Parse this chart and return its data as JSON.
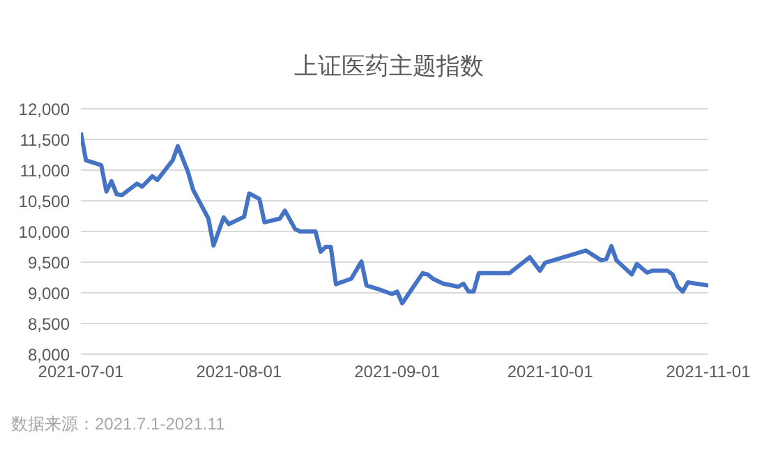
{
  "chart_data": {
    "type": "line",
    "title": "上证医药主题指数",
    "annotations": [
      "数据来源：2021.7.1-2021.11"
    ],
    "x": [
      "2021-07-01",
      "2021-07-02",
      "2021-07-05",
      "2021-07-06",
      "2021-07-07",
      "2021-07-08",
      "2021-07-09",
      "2021-07-12",
      "2021-07-13",
      "2021-07-15",
      "2021-07-16",
      "2021-07-19",
      "2021-07-20",
      "2021-07-22",
      "2021-07-23",
      "2021-07-26",
      "2021-07-27",
      "2021-07-29",
      "2021-07-30",
      "2021-08-02",
      "2021-08-03",
      "2021-08-05",
      "2021-08-06",
      "2021-08-09",
      "2021-08-10",
      "2021-08-12",
      "2021-08-13",
      "2021-08-16",
      "2021-08-17",
      "2021-08-18",
      "2021-08-19",
      "2021-08-20",
      "2021-08-23",
      "2021-08-25",
      "2021-08-26",
      "2021-08-29",
      "2021-08-31",
      "2021-09-01",
      "2021-09-02",
      "2021-09-06",
      "2021-09-07",
      "2021-09-08",
      "2021-09-10",
      "2021-09-13",
      "2021-09-14",
      "2021-09-15",
      "2021-09-16",
      "2021-09-17",
      "2021-09-23",
      "2021-09-27",
      "2021-09-29",
      "2021-09-30",
      "2021-10-08",
      "2021-10-11",
      "2021-10-12",
      "2021-10-13",
      "2021-10-14",
      "2021-10-17",
      "2021-10-18",
      "2021-10-20",
      "2021-10-21",
      "2021-10-24",
      "2021-10-25",
      "2021-10-26",
      "2021-10-27",
      "2021-10-28",
      "2021-11-01"
    ],
    "series": [
      {
        "color": "#4472c4",
        "values": [
          11610,
          11160,
          11080,
          10650,
          10820,
          10610,
          10590,
          10780,
          10730,
          10900,
          10840,
          11160,
          11390,
          10970,
          10680,
          10210,
          9770,
          10230,
          10120,
          10240,
          10620,
          10530,
          10150,
          10210,
          10340,
          10040,
          10000,
          10000,
          9670,
          9750,
          9750,
          9140,
          9230,
          9510,
          9120,
          9040,
          8980,
          9020,
          8830,
          9320,
          9300,
          9230,
          9150,
          9100,
          9150,
          9020,
          9020,
          9320,
          9320,
          9580,
          9360,
          9490,
          9690,
          9530,
          9550,
          9760,
          9530,
          9300,
          9470,
          9330,
          9360,
          9360,
          9300,
          9100,
          9020,
          9170,
          9120
        ]
      }
    ],
    "xlim": [
      "2021-07-01",
      "2021-11-01"
    ],
    "xticks": [
      "2021-07-01",
      "2021-08-01",
      "2021-09-01",
      "2021-10-01",
      "2021-11-01"
    ],
    "ylim": [
      8000,
      12000
    ],
    "yticks": [
      {
        "value": 8000,
        "label": "8,000"
      },
      {
        "value": 8500,
        "label": "8,500"
      },
      {
        "value": 9000,
        "label": "9,000"
      },
      {
        "value": 9500,
        "label": "9,500"
      },
      {
        "value": 10000,
        "label": "10,000"
      },
      {
        "value": 10500,
        "label": "10,500"
      },
      {
        "value": 11000,
        "label": "11,000"
      },
      {
        "value": 11500,
        "label": "11,500"
      },
      {
        "value": 12000,
        "label": "12,000"
      }
    ],
    "grid": "y",
    "legend": false,
    "marker": "none",
    "line_style": "solid"
  }
}
